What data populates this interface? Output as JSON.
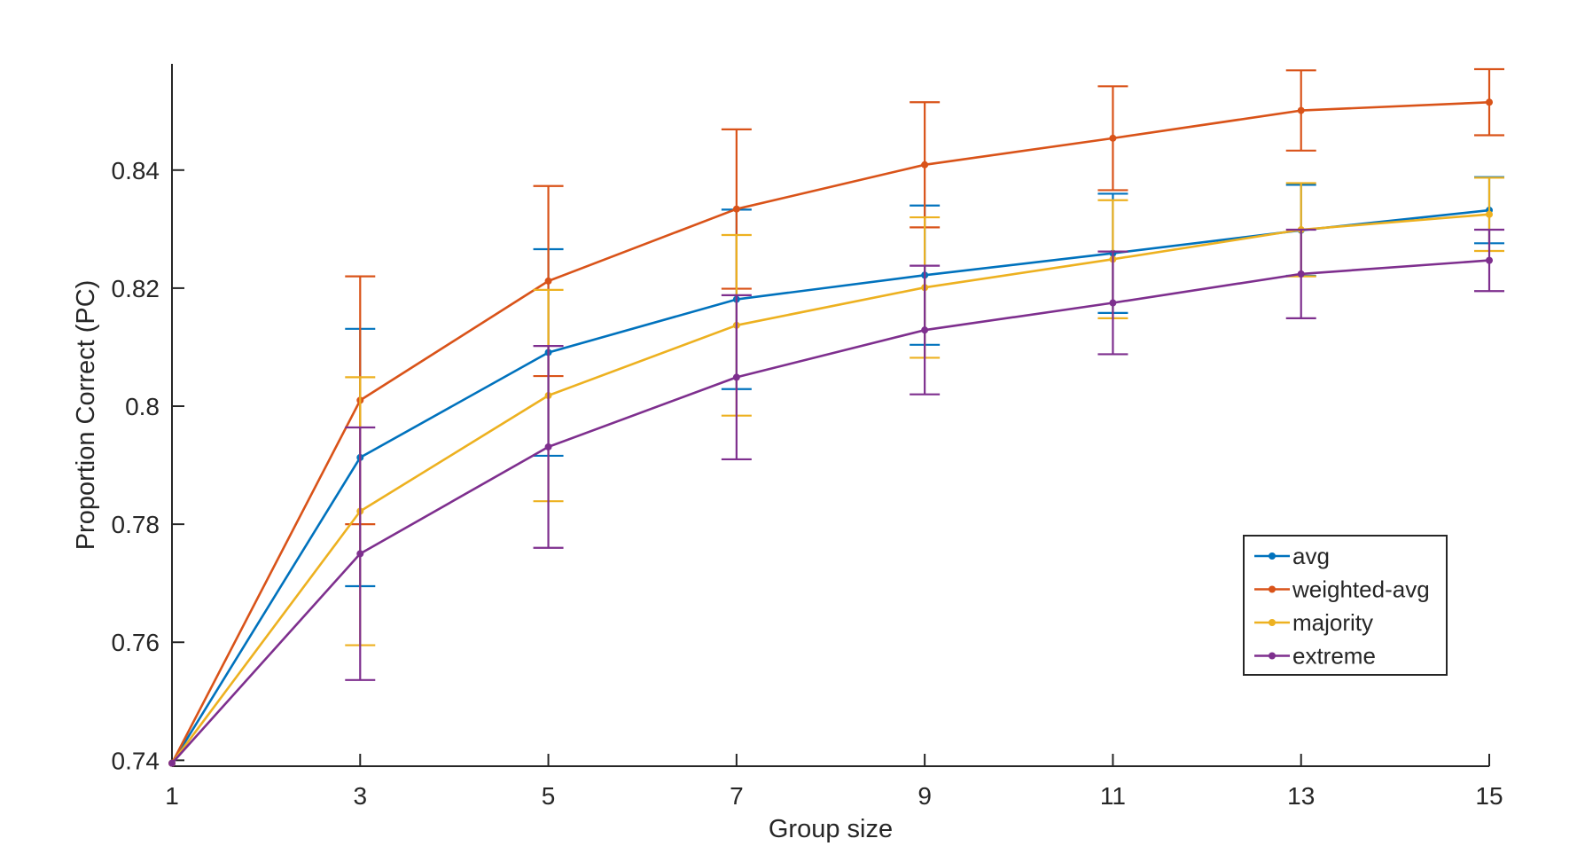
{
  "chart_data": {
    "type": "line",
    "title": "",
    "xlabel": "Group size",
    "ylabel": "Proportion Correct (PC)",
    "xlim": [
      1,
      15
    ],
    "ylim": [
      0.739,
      0.858
    ],
    "x": [
      1,
      3,
      5,
      7,
      9,
      11,
      13,
      15
    ],
    "x_ticks": [
      1,
      3,
      5,
      7,
      9,
      11,
      13,
      15
    ],
    "x_tick_labels": [
      "1",
      "3",
      "5",
      "7",
      "9",
      "11",
      "13",
      "15"
    ],
    "y_ticks": [
      0.74,
      0.76,
      0.78,
      0.8,
      0.82,
      0.84
    ],
    "y_tick_labels": [
      "0.74",
      "0.76",
      "0.78",
      "0.8",
      "0.82",
      "0.84"
    ],
    "grid": false,
    "legend_position": "bottom-right",
    "series": [
      {
        "name": "avg",
        "color": "#0072BD",
        "values": [
          0.7395,
          0.7913,
          0.8091,
          0.8181,
          0.8222,
          0.8259,
          0.8298,
          0.8332
        ],
        "error": [
          0,
          0.0218,
          0.0175,
          0.0152,
          0.0118,
          0.0101,
          0.0077,
          0.0056
        ]
      },
      {
        "name": "weighted-avg",
        "color": "#D95319",
        "values": [
          0.7395,
          0.801,
          0.8212,
          0.8334,
          0.8409,
          0.8454,
          0.8501,
          0.8515
        ],
        "error": [
          0,
          0.021,
          0.0161,
          0.0135,
          0.0106,
          0.0088,
          0.0068,
          0.0056
        ]
      },
      {
        "name": "majority",
        "color": "#EDB120",
        "values": [
          0.7395,
          0.7822,
          0.8018,
          0.8137,
          0.8201,
          0.8249,
          0.8299,
          0.8325
        ],
        "error": [
          0,
          0.0227,
          0.0179,
          0.0153,
          0.0119,
          0.01,
          0.0079,
          0.0062
        ]
      },
      {
        "name": "extreme",
        "color": "#7E2F8E",
        "values": [
          0.7395,
          0.775,
          0.7931,
          0.8049,
          0.8129,
          0.8175,
          0.8224,
          0.8247
        ],
        "error": [
          0,
          0.0214,
          0.0171,
          0.0139,
          0.0109,
          0.0087,
          0.0075,
          0.0052
        ]
      }
    ]
  }
}
